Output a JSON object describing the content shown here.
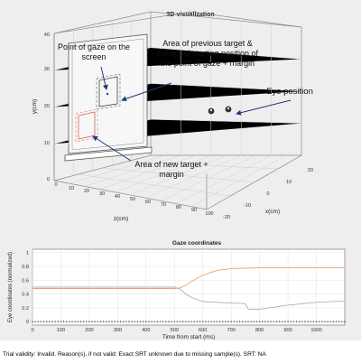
{
  "chart_data": [
    {
      "type": "scatter",
      "title": "3D-visualization",
      "xlabel": "x(cm)",
      "ylabel": "y(cm)",
      "zlabel": "z(cm)",
      "x_ticks": [
        "-20",
        "-10",
        "0",
        "10",
        "20"
      ],
      "y_ticks": [
        "0",
        "10",
        "20",
        "30",
        "40"
      ],
      "z_ticks": [
        "0",
        "10",
        "20",
        "30",
        "40",
        "50",
        "60",
        "70",
        "80",
        "90",
        "100"
      ],
      "grid": true,
      "annotations": {
        "gaze": "Point of gaze on the screen",
        "previous_target": "Area of previous target & expected starting position of the point of gaze + margin",
        "eye": "Eye position",
        "new_target": "Area of new target + margin"
      }
    },
    {
      "type": "line",
      "title": "Gaze coordinates",
      "xlabel": "Time from start (ms)",
      "ylabel": "Eye coordinates (normalized)",
      "xlim": [
        0,
        1100
      ],
      "ylim": [
        -0.05,
        1.05
      ],
      "x_ticks": [
        0,
        100,
        200,
        300,
        400,
        500,
        600,
        700,
        800,
        900,
        1000
      ],
      "y_ticks": [
        0,
        0.2,
        0.4,
        0.6,
        0.8,
        1
      ],
      "grid": true,
      "series": [
        {
          "color": "#f0a070",
          "x": [
            0,
            100,
            200,
            300,
            400,
            500,
            520,
            540,
            560,
            580,
            600,
            620,
            640,
            660,
            700,
            800,
            900,
            1000,
            1100
          ],
          "y": [
            0.48,
            0.48,
            0.48,
            0.48,
            0.48,
            0.48,
            0.49,
            0.53,
            0.58,
            0.63,
            0.67,
            0.7,
            0.73,
            0.75,
            0.77,
            0.78,
            0.78,
            0.78,
            0.78
          ]
        },
        {
          "color": "#b0b0b0",
          "x": [
            0,
            100,
            200,
            300,
            400,
            500,
            520,
            540,
            560,
            580,
            600,
            650,
            700,
            750,
            760,
            800,
            900,
            1000,
            1100
          ],
          "y": [
            0.5,
            0.5,
            0.5,
            0.5,
            0.5,
            0.5,
            0.47,
            0.4,
            0.35,
            0.32,
            0.29,
            0.28,
            0.27,
            0.26,
            0.18,
            0.18,
            0.24,
            0.28,
            0.3
          ]
        },
        {
          "color": "#222222",
          "x": [
            0,
            100,
            200,
            300,
            400,
            500,
            600,
            700,
            800,
            900,
            1000,
            1100
          ],
          "y": [
            0,
            0,
            0,
            0,
            0,
            0,
            0,
            0,
            0,
            0,
            0,
            0
          ]
        }
      ]
    }
  ],
  "status": "Trial validity: Invalid. Reason(s), if not valid: Exact SRT unknown due to missing sample(s). SRT: NA"
}
